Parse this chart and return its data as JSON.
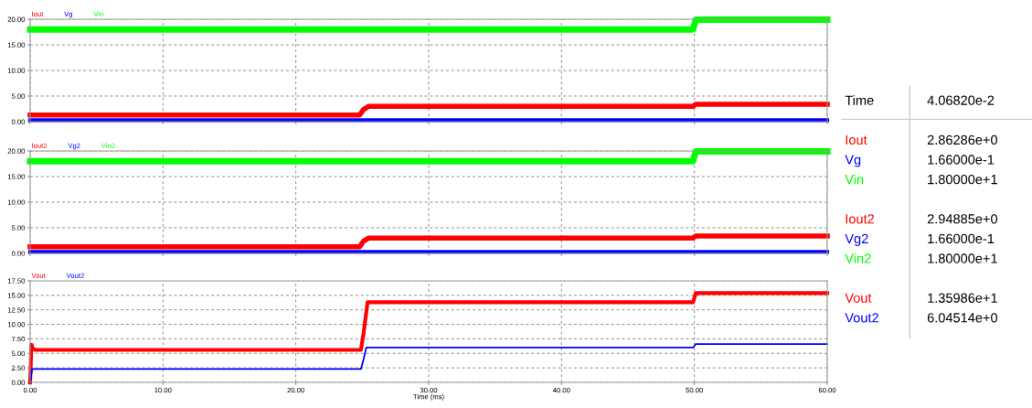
{
  "chart_data": [
    {
      "type": "line",
      "legend": "top left",
      "grid": true,
      "line_style": "solid",
      "marker": "none",
      "tick_labels": "y",
      "xlim": [
        0,
        60
      ],
      "xticks": [
        {
          "value": 0,
          "label": null
        },
        {
          "value": 10,
          "label": null
        },
        {
          "value": 20,
          "label": null
        },
        {
          "value": 30,
          "label": null
        },
        {
          "value": 40,
          "label": null
        },
        {
          "value": 50,
          "label": null
        },
        {
          "value": 60,
          "label": null
        }
      ],
      "ylim": [
        0,
        20
      ],
      "yticks": [
        {
          "value": 0,
          "label": "0.00"
        },
        {
          "value": 5,
          "label": "5.00"
        },
        {
          "value": 10,
          "label": "10.00"
        },
        {
          "value": 15,
          "label": "15.00"
        },
        {
          "value": 20,
          "label": "20.00"
        }
      ],
      "series": [
        {
          "name": "Iout",
          "color": "#ff0000",
          "x": [
            0,
            0.2,
            24.8,
            25.1,
            25.5,
            49.9,
            50.1,
            60
          ],
          "values": [
            1.3,
            1.3,
            1.3,
            2.4,
            3.0,
            3.0,
            3.4,
            3.4
          ]
        },
        {
          "name": "Vg",
          "color": "#0000ff",
          "x": [
            0,
            60
          ],
          "values": [
            0.3,
            0.3
          ]
        },
        {
          "name": "Vin",
          "color": "#00ff00",
          "x": [
            0,
            49.9,
            50.1,
            60
          ],
          "values": [
            18,
            18,
            19.9,
            19.9
          ]
        }
      ]
    },
    {
      "type": "line",
      "legend": "top left",
      "grid": true,
      "line_style": "solid",
      "marker": "none",
      "tick_labels": "y",
      "xlim": [
        0,
        60
      ],
      "xticks": [
        {
          "value": 0,
          "label": null
        },
        {
          "value": 10,
          "label": null
        },
        {
          "value": 20,
          "label": null
        },
        {
          "value": 30,
          "label": null
        },
        {
          "value": 40,
          "label": null
        },
        {
          "value": 50,
          "label": null
        },
        {
          "value": 60,
          "label": null
        }
      ],
      "ylim": [
        0,
        20
      ],
      "yticks": [
        {
          "value": 0,
          "label": "0.00"
        },
        {
          "value": 5,
          "label": "5.00"
        },
        {
          "value": 10,
          "label": "10.00"
        },
        {
          "value": 15,
          "label": "15.00"
        },
        {
          "value": 20,
          "label": "20.00"
        }
      ],
      "series": [
        {
          "name": "Iout2",
          "color": "#ff0000",
          "x": [
            0,
            0.2,
            24.8,
            25.1,
            25.5,
            49.9,
            50.1,
            60
          ],
          "values": [
            1.3,
            1.3,
            1.3,
            2.4,
            3.0,
            3.0,
            3.4,
            3.4
          ]
        },
        {
          "name": "Vg2",
          "color": "#0000ff",
          "x": [
            0,
            60
          ],
          "values": [
            0.3,
            0.3
          ]
        },
        {
          "name": "Vin2",
          "color": "#00ff00",
          "x": [
            0,
            49.9,
            50.1,
            60
          ],
          "values": [
            18,
            18,
            19.9,
            19.9
          ]
        }
      ]
    },
    {
      "type": "line",
      "legend": "top left",
      "grid": true,
      "line_style": "solid",
      "marker": "none",
      "xlabel": "Time (ms)",
      "xlim": [
        0,
        60
      ],
      "xticks": [
        {
          "value": 0,
          "label": "0.00"
        },
        {
          "value": 10,
          "label": "10.00"
        },
        {
          "value": 20,
          "label": "20.00"
        },
        {
          "value": 30,
          "label": "30.00"
        },
        {
          "value": 40,
          "label": "40.00"
        },
        {
          "value": 50,
          "label": "50.00"
        },
        {
          "value": 60,
          "label": "60.00"
        }
      ],
      "ylim": [
        0,
        17.5
      ],
      "yticks": [
        {
          "value": 0,
          "label": "0.00"
        },
        {
          "value": 2.5,
          "label": "2.50"
        },
        {
          "value": 5,
          "label": "5.00"
        },
        {
          "value": 7.5,
          "label": "7.50"
        },
        {
          "value": 10,
          "label": "10.00"
        },
        {
          "value": 12.5,
          "label": "12.50"
        },
        {
          "value": 15,
          "label": "15.00"
        },
        {
          "value": 17.5,
          "label": "17.50"
        }
      ],
      "series": [
        {
          "name": "Vout",
          "color": "#ff0000",
          "x": [
            0,
            0.1,
            0.2,
            0.4,
            24.9,
            25.1,
            25.4,
            49.9,
            50.1,
            60
          ],
          "values": [
            0,
            6.5,
            5.8,
            5.6,
            5.6,
            8.5,
            13.8,
            13.8,
            15.4,
            15.4
          ]
        },
        {
          "name": "Vout2",
          "color": "#0000ff",
          "x": [
            0,
            0.15,
            24.9,
            25.1,
            25.3,
            49.9,
            50.1,
            60
          ],
          "values": [
            0,
            2.3,
            2.3,
            4.0,
            6.0,
            6.0,
            6.6,
            6.6
          ]
        }
      ]
    },
    {
      "type": "other",
      "categories": [
        "Time",
        null,
        "Iout",
        "Vg",
        "Vin",
        null,
        "Iout2",
        "Vg2",
        "Vin2",
        null,
        "Vout",
        "Vout2"
      ],
      "colors": [
        "#000000",
        null,
        "#ff0000",
        "#0000ff",
        "#00ff00",
        null,
        "#ff0000",
        "#0000ff",
        "#00ff00",
        null,
        "#ff0000",
        "#0000ff"
      ],
      "value_labels": [
        "4.06820e-2",
        null,
        "2.86286e+0",
        "1.66000e-1",
        "1.80000e+1",
        null,
        "2.94885e+0",
        "1.66000e-1",
        "1.80000e+1",
        null,
        "1.35986e+1",
        "6.04514e+0"
      ]
    }
  ]
}
